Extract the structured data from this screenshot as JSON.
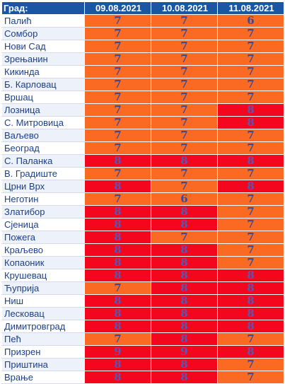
{
  "header": {
    "city_label": "Град:",
    "dates": [
      "09.08.2021",
      "10.08.2021",
      "11.08.2021"
    ]
  },
  "colors": {
    "header_bg": "#1b56a4",
    "level_7": "#fa6a23",
    "level_8": "#f5061f"
  },
  "rows": [
    {
      "city": "Палић",
      "values": [
        "7",
        "7",
        "6"
      ]
    },
    {
      "city": "Сомбор",
      "values": [
        "7",
        "7",
        "7"
      ]
    },
    {
      "city": "Нови Сад",
      "values": [
        "7",
        "7",
        "7"
      ]
    },
    {
      "city": "Зрењанин",
      "values": [
        "7",
        "7",
        "7"
      ]
    },
    {
      "city": "Кикинда",
      "values": [
        "7",
        "7",
        "7"
      ]
    },
    {
      "city": "Б. Карловац",
      "values": [
        "7",
        "7",
        "7"
      ]
    },
    {
      "city": "Вршац",
      "values": [
        "7",
        "7",
        "7"
      ]
    },
    {
      "city": "Лозница",
      "values": [
        "7",
        "7",
        "8"
      ]
    },
    {
      "city": "С. Митровица",
      "values": [
        "7",
        "7",
        "8"
      ]
    },
    {
      "city": "Ваљево",
      "values": [
        "7",
        "7",
        "7"
      ]
    },
    {
      "city": "Београд",
      "values": [
        "7",
        "7",
        "7"
      ]
    },
    {
      "city": "С. Паланка",
      "values": [
        "8",
        "8",
        "8"
      ]
    },
    {
      "city": "В. Градиште",
      "values": [
        "7",
        "7",
        "7"
      ]
    },
    {
      "city": "Црни Врх",
      "values": [
        "8",
        "7",
        "8"
      ]
    },
    {
      "city": "Неготин",
      "values": [
        "7",
        "6",
        "7"
      ]
    },
    {
      "city": "Златибор",
      "values": [
        "8",
        "8",
        "7"
      ]
    },
    {
      "city": "Сјеница",
      "values": [
        "8",
        "8",
        "7"
      ]
    },
    {
      "city": "Пожега",
      "values": [
        "8",
        "7",
        "7"
      ]
    },
    {
      "city": "Краљево",
      "values": [
        "8",
        "8",
        "7"
      ]
    },
    {
      "city": "Копаоник",
      "values": [
        "8",
        "8",
        "7"
      ]
    },
    {
      "city": "Крушевац",
      "values": [
        "8",
        "8",
        "8"
      ]
    },
    {
      "city": "Ћуприја",
      "values": [
        "7",
        "8",
        "8"
      ]
    },
    {
      "city": "Ниш",
      "values": [
        "8",
        "8",
        "8"
      ]
    },
    {
      "city": "Лесковац",
      "values": [
        "8",
        "8",
        "8"
      ]
    },
    {
      "city": "Димитровград",
      "values": [
        "8",
        "8",
        "8"
      ]
    },
    {
      "city": "Пећ",
      "values": [
        "7",
        "8",
        "7"
      ]
    },
    {
      "city": "Призрен",
      "values": [
        "9",
        "9",
        "8"
      ]
    },
    {
      "city": "Приштина",
      "values": [
        "8",
        "8",
        "7"
      ]
    },
    {
      "city": "Врање",
      "values": [
        "8",
        "8",
        "7"
      ]
    }
  ]
}
